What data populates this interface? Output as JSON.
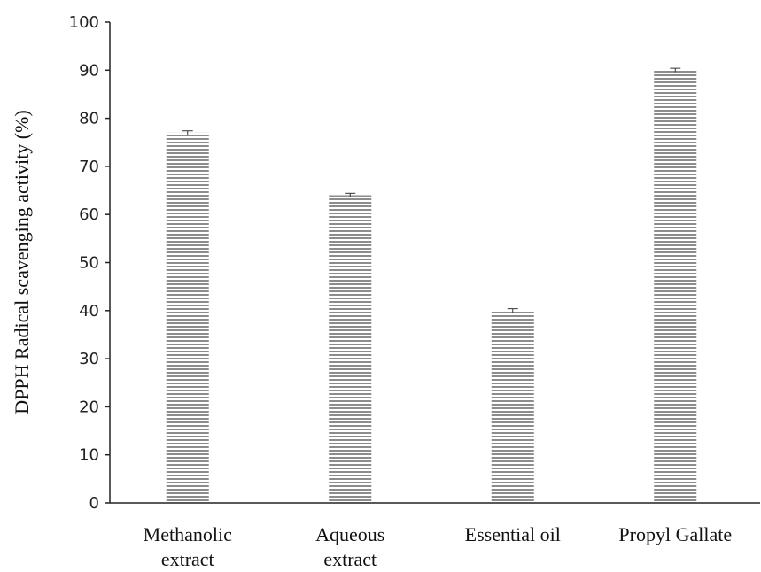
{
  "chart_data": {
    "type": "bar",
    "categories": [
      [
        "Methanolic",
        "extract"
      ],
      [
        "Aqueous",
        "extract"
      ],
      [
        "Essential oil"
      ],
      [
        "Propyl Gallate"
      ]
    ],
    "values": [
      77,
      64,
      40,
      90
    ],
    "error": [
      0.4,
      0.4,
      0.4,
      0.4
    ],
    "title": "",
    "xlabel": "",
    "ylabel": "DPPH Radical scavenging activity (%)",
    "ylim": [
      0,
      100
    ],
    "yticks": [
      "0",
      "10",
      "20",
      "30",
      "40",
      "50",
      "60",
      "70",
      "80",
      "90",
      "100"
    ],
    "grid": false,
    "bar_pattern": "horizontal-stripes",
    "bar_color": "#8c8c8c"
  }
}
